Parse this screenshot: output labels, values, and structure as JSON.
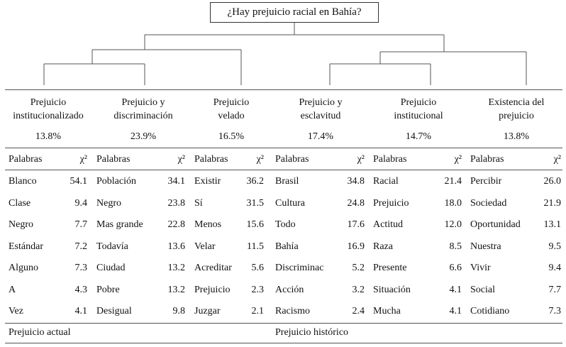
{
  "root": "¿Hay prejuicio racial en Bahía?",
  "word_header": "Palabras",
  "chi_header": "χ²",
  "clusters": [
    {
      "label": [
        "Prejuicio",
        "institucionalizado"
      ],
      "pct": "13.8%",
      "words": [
        {
          "w": "Blanco",
          "c": "54.1"
        },
        {
          "w": "Clase",
          "c": "9.4"
        },
        {
          "w": "Negro",
          "c": "7.7"
        },
        {
          "w": "Estándar",
          "c": "7.2"
        },
        {
          "w": "Alguno",
          "c": "7.3"
        },
        {
          "w": "A",
          "c": "4.3"
        },
        {
          "w": "Vez",
          "c": "4.1"
        }
      ]
    },
    {
      "label": [
        "Prejuicio y",
        "discriminación"
      ],
      "pct": "23.9%",
      "words": [
        {
          "w": "Población",
          "c": "34.1"
        },
        {
          "w": "Negro",
          "c": "23.8"
        },
        {
          "w": "Mas grande",
          "c": "22.8"
        },
        {
          "w": "Todavía",
          "c": "13.6"
        },
        {
          "w": "Ciudad",
          "c": "13.2"
        },
        {
          "w": "Pobre",
          "c": "13.2"
        },
        {
          "w": "Desigual",
          "c": "9.8"
        }
      ]
    },
    {
      "label": [
        "Prejuicio",
        "velado"
      ],
      "pct": "16.5%",
      "words": [
        {
          "w": "Existir",
          "c": "36.2"
        },
        {
          "w": "Sí",
          "c": "31.5"
        },
        {
          "w": "Menos",
          "c": "15.6"
        },
        {
          "w": "Velar",
          "c": "11.5"
        },
        {
          "w": "Acreditar",
          "c": "5.6"
        },
        {
          "w": "Prejuicio",
          "c": "2.3"
        },
        {
          "w": "Juzgar",
          "c": "2.1"
        }
      ]
    },
    {
      "label": [
        "Prejuicio y",
        "esclavitud"
      ],
      "pct": "17.4%",
      "words": [
        {
          "w": "Brasil",
          "c": "34.8"
        },
        {
          "w": "Cultura",
          "c": "24.8"
        },
        {
          "w": "Todo",
          "c": "17.6"
        },
        {
          "w": "Bahía",
          "c": "16.9"
        },
        {
          "w": "Discriminac",
          "c": "5.2"
        },
        {
          "w": "Acción",
          "c": "3.2"
        },
        {
          "w": "Racismo",
          "c": "2.4"
        }
      ]
    },
    {
      "label": [
        "Prejuicio",
        "institucional"
      ],
      "pct": "14.7%",
      "words": [
        {
          "w": "Racial",
          "c": "21.4"
        },
        {
          "w": "Prejuicio",
          "c": "18.0"
        },
        {
          "w": "Actitud",
          "c": "12.0"
        },
        {
          "w": "Raza",
          "c": "8.5"
        },
        {
          "w": "Presente",
          "c": "6.6"
        },
        {
          "w": "Situación",
          "c": "4.1"
        },
        {
          "w": "Mucha",
          "c": "4.1"
        }
      ]
    },
    {
      "label": [
        "Existencia del",
        "prejuicio"
      ],
      "pct": "13.8%",
      "words": [
        {
          "w": "Percibir",
          "c": "26.0"
        },
        {
          "w": "Sociedad",
          "c": "21.9"
        },
        {
          "w": "Oportunidad",
          "c": "13.1"
        },
        {
          "w": "Nuestra",
          "c": "9.5"
        },
        {
          "w": "Vivir",
          "c": "9.4"
        },
        {
          "w": "Social",
          "c": "7.7"
        },
        {
          "w": "Cotidiano",
          "c": "7.3"
        }
      ]
    }
  ],
  "footer": {
    "left": "Prejuicio actual",
    "right": "Prejuicio histórico"
  }
}
